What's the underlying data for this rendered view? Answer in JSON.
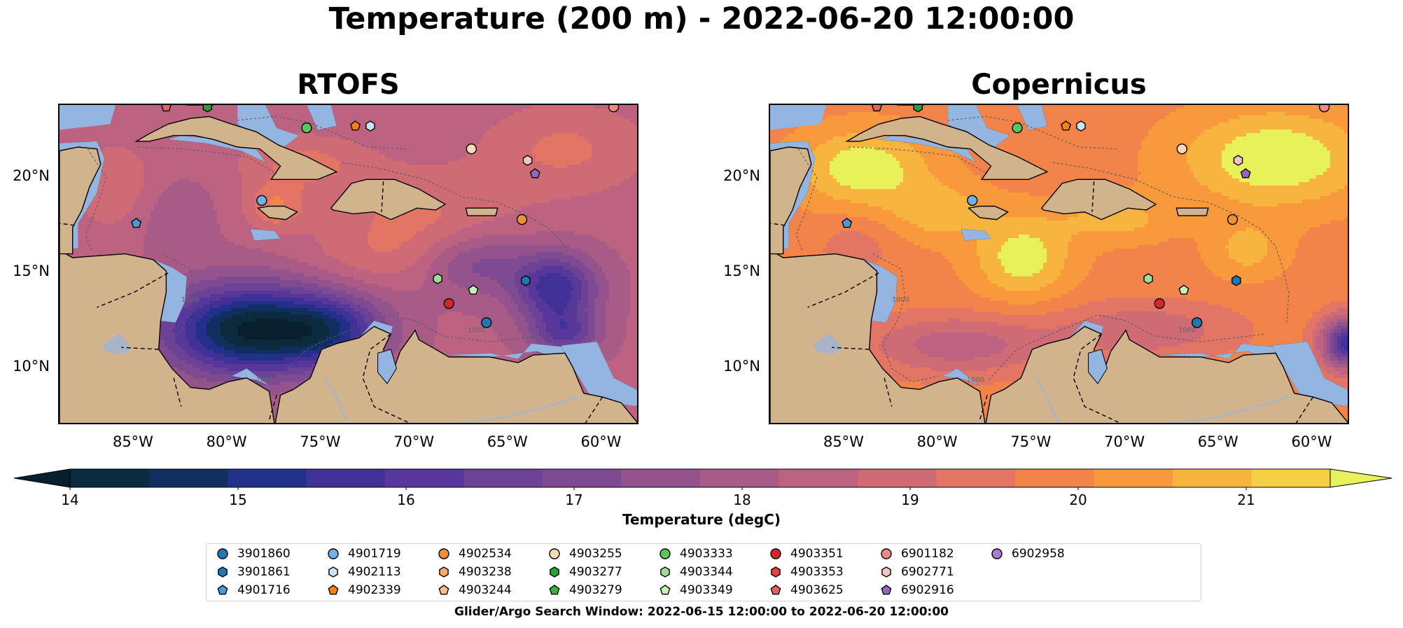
{
  "suptitle": "Temperature (200 m) - 2022-06-20 12:00:00",
  "panels": [
    {
      "id": "rtofs",
      "title": "RTOFS"
    },
    {
      "id": "copernicus",
      "title": "Copernicus"
    }
  ],
  "map_extent": {
    "lon_min": -89,
    "lon_max": -58,
    "lat_min": 7,
    "lat_max": 23.8
  },
  "lat_ticks": [
    {
      "value": 20,
      "label": "20°N"
    },
    {
      "value": 15,
      "label": "15°N"
    },
    {
      "value": 10,
      "label": "10°N"
    }
  ],
  "lon_ticks": [
    {
      "value": -85,
      "label": "85°W"
    },
    {
      "value": -80,
      "label": "80°W"
    },
    {
      "value": -75,
      "label": "75°W"
    },
    {
      "value": -70,
      "label": "70°W"
    },
    {
      "value": -65,
      "label": "65°W"
    },
    {
      "value": -60,
      "label": "60°W"
    }
  ],
  "colorbar": {
    "label": "Temperature (degC)",
    "min": 14,
    "max": 21.5,
    "step": 0.5,
    "ticks": [
      "14",
      "15",
      "16",
      "17",
      "18",
      "19",
      "20",
      "21"
    ],
    "colors": [
      "#0b2a3d",
      "#112f5e",
      "#23308a",
      "#403197",
      "#57389a",
      "#6b4296",
      "#7e4b92",
      "#93538d",
      "#a85b87",
      "#bc6381",
      "#cf6b75",
      "#e27563",
      "#f28449",
      "#f89a3c",
      "#f7b43f",
      "#f5d045"
    ],
    "extend_max_color": "#e8f05a",
    "extend_min_color": "#08202e"
  },
  "colors": {
    "land": "#d2b48c",
    "shallow": "#93b5e0",
    "rivers": "#a8b4c8"
  },
  "legend": {
    "title": "",
    "items": [
      {
        "id": "3901860",
        "marker": "circle",
        "color": "#1f77b4"
      },
      {
        "id": "3901861",
        "marker": "hexagon",
        "color": "#1f77b4"
      },
      {
        "id": "4901716",
        "marker": "pentagon",
        "color": "#4a9ad5"
      },
      {
        "id": "4901719",
        "marker": "circle",
        "color": "#6fb0e6"
      },
      {
        "id": "4902113",
        "marker": "hexagon",
        "color": "#c6e4f7"
      },
      {
        "id": "4902339",
        "marker": "pentagon",
        "color": "#ff7f0e"
      },
      {
        "id": "4902534",
        "marker": "circle",
        "color": "#f28e34"
      },
      {
        "id": "4903238",
        "marker": "hexagon",
        "color": "#f9ab5f"
      },
      {
        "id": "4903244",
        "marker": "pentagon",
        "color": "#fcc08f"
      },
      {
        "id": "4903255",
        "marker": "circle",
        "color": "#ffdcb5"
      },
      {
        "id": "4903277",
        "marker": "hexagon",
        "color": "#2ca02c"
      },
      {
        "id": "4903279",
        "marker": "pentagon",
        "color": "#3bb33b"
      },
      {
        "id": "4903333",
        "marker": "circle",
        "color": "#5cc45c"
      },
      {
        "id": "4903344",
        "marker": "hexagon",
        "color": "#9fdd95"
      },
      {
        "id": "4903349",
        "marker": "pentagon",
        "color": "#c7f2b5"
      },
      {
        "id": "4903351",
        "marker": "circle",
        "color": "#d62728"
      },
      {
        "id": "4903353",
        "marker": "hexagon",
        "color": "#e34040"
      },
      {
        "id": "4903625",
        "marker": "pentagon",
        "color": "#e86161"
      },
      {
        "id": "6901182",
        "marker": "circle",
        "color": "#f08888"
      },
      {
        "id": "6902771",
        "marker": "hexagon",
        "color": "#fbc4c4"
      },
      {
        "id": "6902916",
        "marker": "pentagon",
        "color": "#9467bd"
      },
      {
        "id": "6902958",
        "marker": "circle",
        "color": "#a47fd0"
      }
    ]
  },
  "floats": [
    {
      "id": "3901860",
      "lon": -66.2,
      "lat": 12.4
    },
    {
      "id": "3901861",
      "lon": -64.1,
      "lat": 14.6
    },
    {
      "id": "4901716",
      "lon": -84.9,
      "lat": 17.6
    },
    {
      "id": "4901719",
      "lon": -78.2,
      "lat": 18.8
    },
    {
      "id": "4902113",
      "lon": -72.4,
      "lat": 22.7
    },
    {
      "id": "4902339",
      "lon": -73.2,
      "lat": 22.7
    },
    {
      "id": "4902534",
      "lon": -64.3,
      "lat": 17.8
    },
    {
      "id": "4903255",
      "lon": -67.0,
      "lat": 21.5
    },
    {
      "id": "4903277",
      "lon": -81.1,
      "lat": 23.7
    },
    {
      "id": "4903333",
      "lon": -75.8,
      "lat": 22.6
    },
    {
      "id": "4903344",
      "lon": -68.8,
      "lat": 14.7
    },
    {
      "id": "4903349",
      "lon": -66.9,
      "lat": 14.1
    },
    {
      "id": "4903351",
      "lon": -68.2,
      "lat": 13.4
    },
    {
      "id": "4903625",
      "lon": -83.3,
      "lat": 23.7
    },
    {
      "id": "6902771",
      "lon": -64.0,
      "lat": 20.9
    },
    {
      "id": "6902916",
      "lon": -63.6,
      "lat": 20.2
    },
    {
      "id": "6901182",
      "lon": -59.4,
      "lat": 23.7
    }
  ],
  "search_window": "Glider/Argo Search Window: 2022-06-15 12:00:00 to 2022-06-20 12:00:00",
  "contour_label": "1000"
}
